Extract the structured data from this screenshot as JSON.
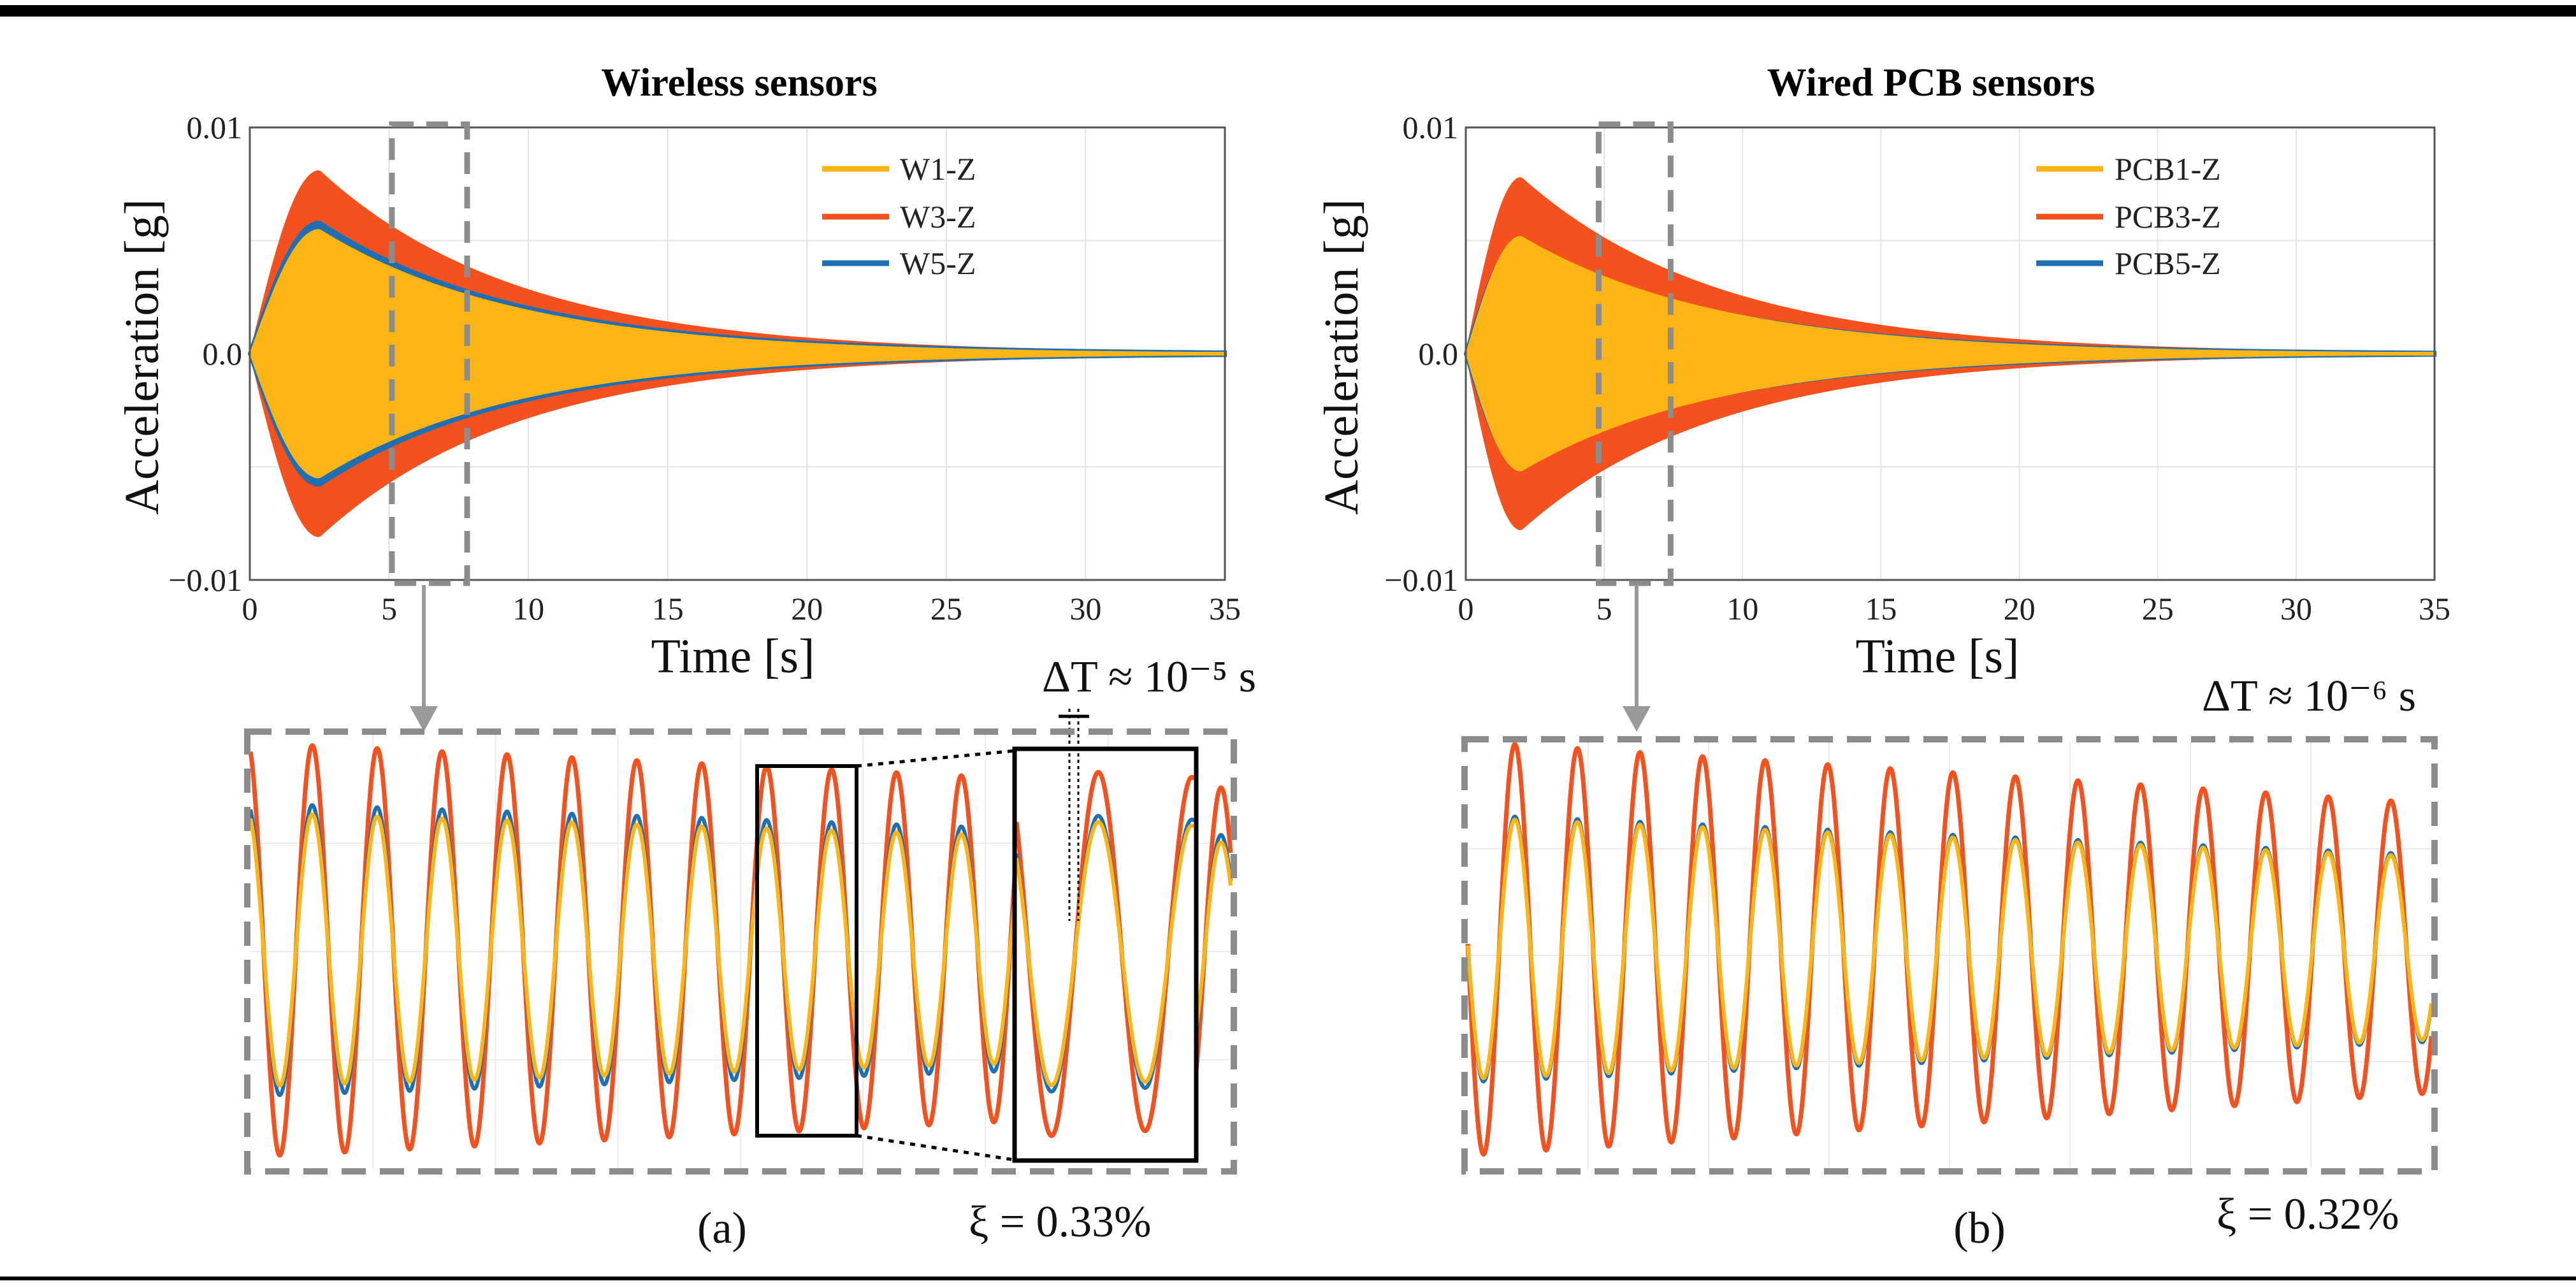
{
  "figure": {
    "colors": {
      "w1": "#FDB515",
      "w3": "#F4511E",
      "w5": "#1F6FB2",
      "dash": "#8C8C8C",
      "grid": "#E3E3E3",
      "rule": "#000000"
    }
  },
  "chart_data": [
    {
      "id": "a-wireless",
      "type": "line",
      "title": "Wireless sensors",
      "xlabel": "Time [s]",
      "ylabel": "Acceleration [g]",
      "xlim": [
        0,
        35
      ],
      "ylim": [
        -0.01,
        0.01
      ],
      "xticks": [
        0,
        5,
        10,
        15,
        20,
        25,
        30,
        35
      ],
      "xtick_labels": [
        "0",
        "5",
        "10",
        "15",
        "20",
        "25",
        "30",
        "35"
      ],
      "yticks": [
        -0.01,
        0.0,
        0.01
      ],
      "ytick_labels": [
        "−0.01",
        "0.0",
        "0.01"
      ],
      "legend_position": "top-right",
      "series": [
        {
          "name": "W1-Z",
          "color_key": "w1",
          "peak": 0.0055,
          "peak_time": 2.5,
          "decay": 0.14
        },
        {
          "name": "W3-Z",
          "color_key": "w3",
          "peak": 0.0081,
          "peak_time": 2.5,
          "decay": 0.14
        },
        {
          "name": "W5-Z",
          "color_key": "w5",
          "peak": 0.0058,
          "peak_time": 2.5,
          "decay": 0.14
        }
      ],
      "zoom_window": [
        5.1,
        7.8
      ],
      "zoom_annotation": "ΔT ≈ 10⁻⁵ s",
      "damping_label": "ξ = 0.33%",
      "panel_label": "(a)"
    },
    {
      "id": "b-wired",
      "type": "line",
      "title": "Wired PCB sensors",
      "xlabel": "Time [s]",
      "ylabel": "Acceleration [g]",
      "xlim": [
        0,
        35
      ],
      "ylim": [
        -0.01,
        0.01
      ],
      "xticks": [
        0,
        5,
        10,
        15,
        20,
        25,
        30,
        35
      ],
      "xtick_labels": [
        "0",
        "5",
        "10",
        "15",
        "20",
        "25",
        "30",
        "35"
      ],
      "yticks": [
        -0.01,
        0.0,
        0.01
      ],
      "ytick_labels": [
        "−0.01",
        "0.0",
        "0.01"
      ],
      "legend_position": "top-right",
      "series": [
        {
          "name": "PCB1-Z",
          "color_key": "w1",
          "peak": 0.0052,
          "peak_time": 2.0,
          "decay": 0.14
        },
        {
          "name": "PCB3-Z",
          "color_key": "w3",
          "peak": 0.0078,
          "peak_time": 2.0,
          "decay": 0.14
        },
        {
          "name": "PCB5-Z",
          "color_key": "w5",
          "peak": 0.005,
          "peak_time": 2.0,
          "decay": 0.14
        }
      ],
      "zoom_window": [
        4.8,
        7.4
      ],
      "zoom_annotation": "ΔT ≈ 10⁻⁶ s",
      "damping_label": "ξ = 0.32%",
      "panel_label": "(b)"
    }
  ]
}
